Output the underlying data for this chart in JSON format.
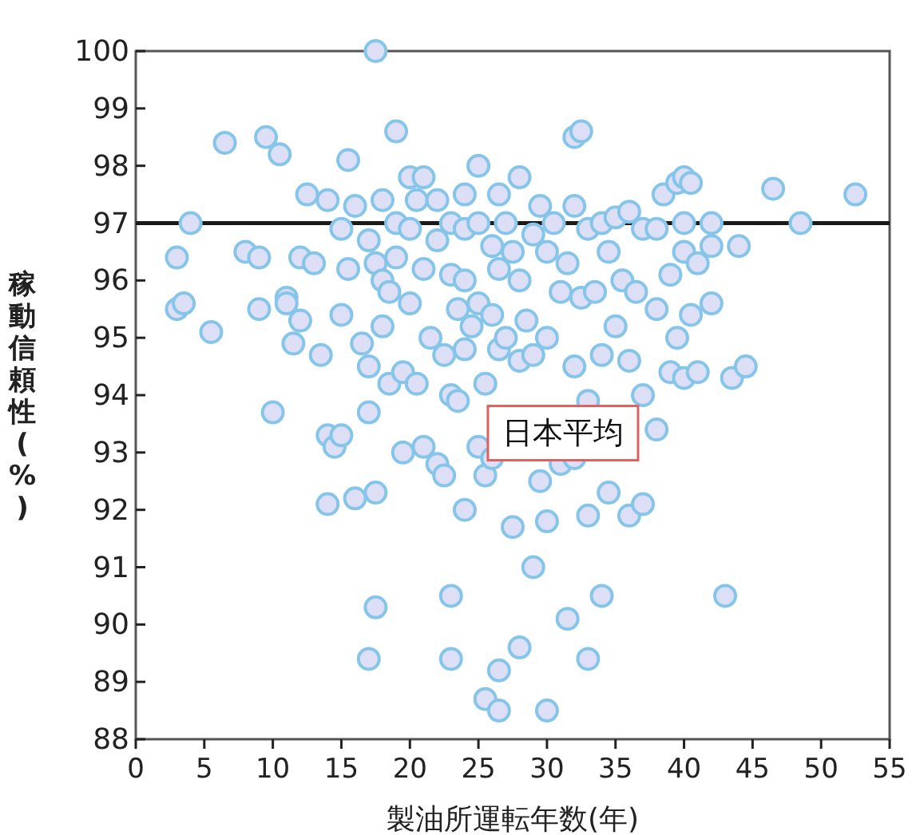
{
  "chart_data": {
    "type": "scatter",
    "xlabel": "製油所運転年数(年)",
    "ylabel": "稼動信頼性(%)",
    "xlim": [
      0,
      55
    ],
    "ylim": [
      88,
      100
    ],
    "xticks": [
      0,
      5,
      10,
      15,
      20,
      25,
      30,
      35,
      40,
      45,
      50,
      55
    ],
    "yticks": [
      88,
      89,
      90,
      91,
      92,
      93,
      94,
      95,
      96,
      97,
      98,
      99,
      100
    ],
    "grid": false,
    "marker": "circle",
    "ref_lines": [
      {
        "axis": "y",
        "value": 97,
        "label": "日本平均",
        "color": "#1a1a1a"
      }
    ],
    "series": [
      {
        "color": "#dcdff5",
        "x": [
          3,
          3,
          3.5,
          4,
          5.5,
          6.5,
          8,
          9,
          9,
          9.5,
          10,
          10.5,
          11,
          11,
          11.5,
          12,
          12,
          12.5,
          13,
          13.5,
          14,
          14,
          14,
          14.5,
          15,
          15,
          15,
          15.5,
          15.5,
          16,
          16,
          16.5,
          17,
          17,
          17,
          17,
          17.5,
          17.5,
          17.5,
          17.5,
          18,
          18,
          18,
          18.5,
          18.5,
          19,
          19,
          19,
          19.5,
          19.5,
          20,
          20,
          20,
          20.5,
          20.5,
          21,
          21,
          21,
          21.5,
          22,
          22,
          22,
          22.5,
          22.5,
          23,
          23,
          23,
          23,
          23,
          23.5,
          23.5,
          24,
          24,
          24,
          24,
          24,
          24.5,
          25,
          25,
          25,
          25,
          25.5,
          25.5,
          25.5,
          26,
          26,
          26,
          26.5,
          26.5,
          26.5,
          26.5,
          26.5,
          27,
          27,
          27.5,
          27.5,
          28,
          28,
          28,
          28,
          28.5,
          29,
          29,
          29,
          29.5,
          29.5,
          30,
          30,
          30,
          30,
          30.5,
          31,
          31,
          31.5,
          31.5,
          32,
          32,
          32,
          32,
          32.5,
          32.5,
          33,
          33,
          33,
          33,
          33.5,
          34,
          34,
          34,
          34.5,
          34.5,
          35,
          35,
          35.5,
          36,
          36,
          36,
          36.5,
          37,
          37,
          37,
          38,
          38,
          38,
          38.5,
          39,
          39,
          39.5,
          39.5,
          40,
          40,
          40,
          40,
          40.5,
          40.5,
          41,
          41,
          42,
          42,
          42,
          43,
          43.5,
          44,
          44.5,
          46.5,
          48.5,
          52.5
        ],
        "values": [
          96.4,
          95.5,
          95.6,
          97,
          95.1,
          98.4,
          96.5,
          96.4,
          95.5,
          98.5,
          93.7,
          98.2,
          95.7,
          95.6,
          94.9,
          96.4,
          95.3,
          97.5,
          96.3,
          94.7,
          97.4,
          93.3,
          92.1,
          93.1,
          96.9,
          95.4,
          93.3,
          98.1,
          96.2,
          97.3,
          92.2,
          94.9,
          96.7,
          94.5,
          93.7,
          89.4,
          100,
          96.3,
          92.3,
          90.3,
          97.4,
          96,
          95.2,
          94.2,
          95.8,
          98.6,
          97,
          96.4,
          94.4,
          93,
          97.8,
          96.9,
          95.6,
          97.4,
          94.2,
          96.2,
          93.1,
          97.8,
          95,
          92.8,
          96.7,
          97.4,
          94.7,
          92.6,
          94,
          96.1,
          97,
          90.5,
          89.4,
          95.5,
          93.9,
          97.5,
          96.9,
          96,
          94.8,
          92,
          95.2,
          98,
          97,
          95.6,
          93.1,
          94.2,
          92.6,
          88.7,
          96.6,
          95.4,
          92.9,
          97.5,
          96.2,
          94.8,
          88.5,
          89.2,
          97,
          95,
          96.5,
          91.7,
          97.8,
          96,
          94.6,
          89.6,
          95.3,
          96.8,
          94.7,
          91,
          97.3,
          92.5,
          96.5,
          95,
          91.8,
          88.5,
          97,
          95.8,
          92.8,
          96.3,
          90.1,
          98.5,
          97.3,
          94.5,
          92.9,
          98.6,
          95.7,
          96.9,
          93.9,
          91.9,
          89.4,
          95.8,
          97,
          94.7,
          90.5,
          96.5,
          92.3,
          97.1,
          95.2,
          96,
          97.2,
          94.6,
          91.9,
          95.8,
          96.9,
          94,
          92.1,
          96.9,
          95.5,
          93.4,
          97.5,
          96.1,
          94.4,
          97.7,
          95,
          97.8,
          97,
          96.5,
          94.3,
          97.7,
          95.4,
          96.3,
          94.4,
          97,
          95.6,
          96.6,
          90.5,
          94.3,
          96.6,
          94.5,
          97.6,
          97,
          97.5
        ]
      }
    ]
  }
}
